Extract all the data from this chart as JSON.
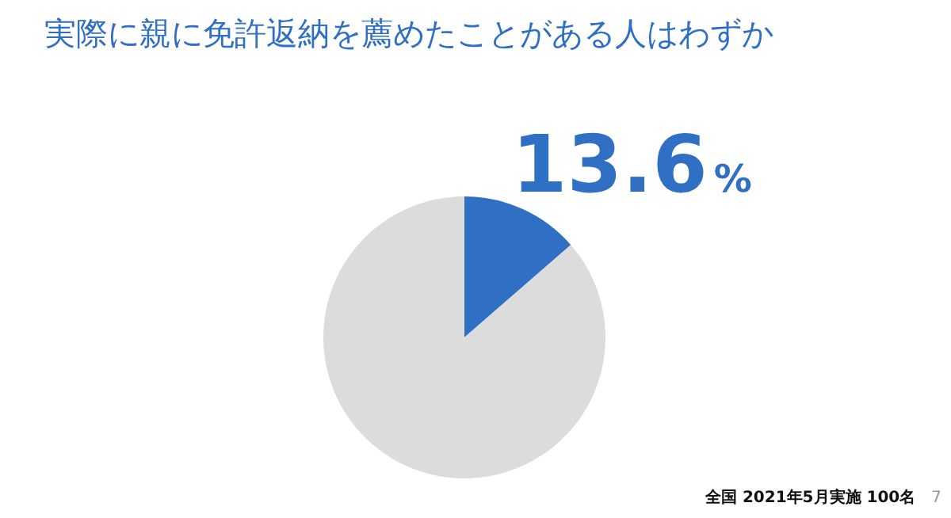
{
  "chart_data": {
    "type": "pie",
    "title": "実際に親に免許返納を薦めたことがある人はわずか",
    "categories": [
      null,
      null
    ],
    "values": [
      13.6,
      86.4
    ],
    "colors": [
      "#2f6fc4",
      "#dcdcdc"
    ],
    "value_labels": [
      "13.6%",
      null
    ],
    "annotations": [
      "全国 2021年5月実施 100名",
      "7"
    ]
  }
}
